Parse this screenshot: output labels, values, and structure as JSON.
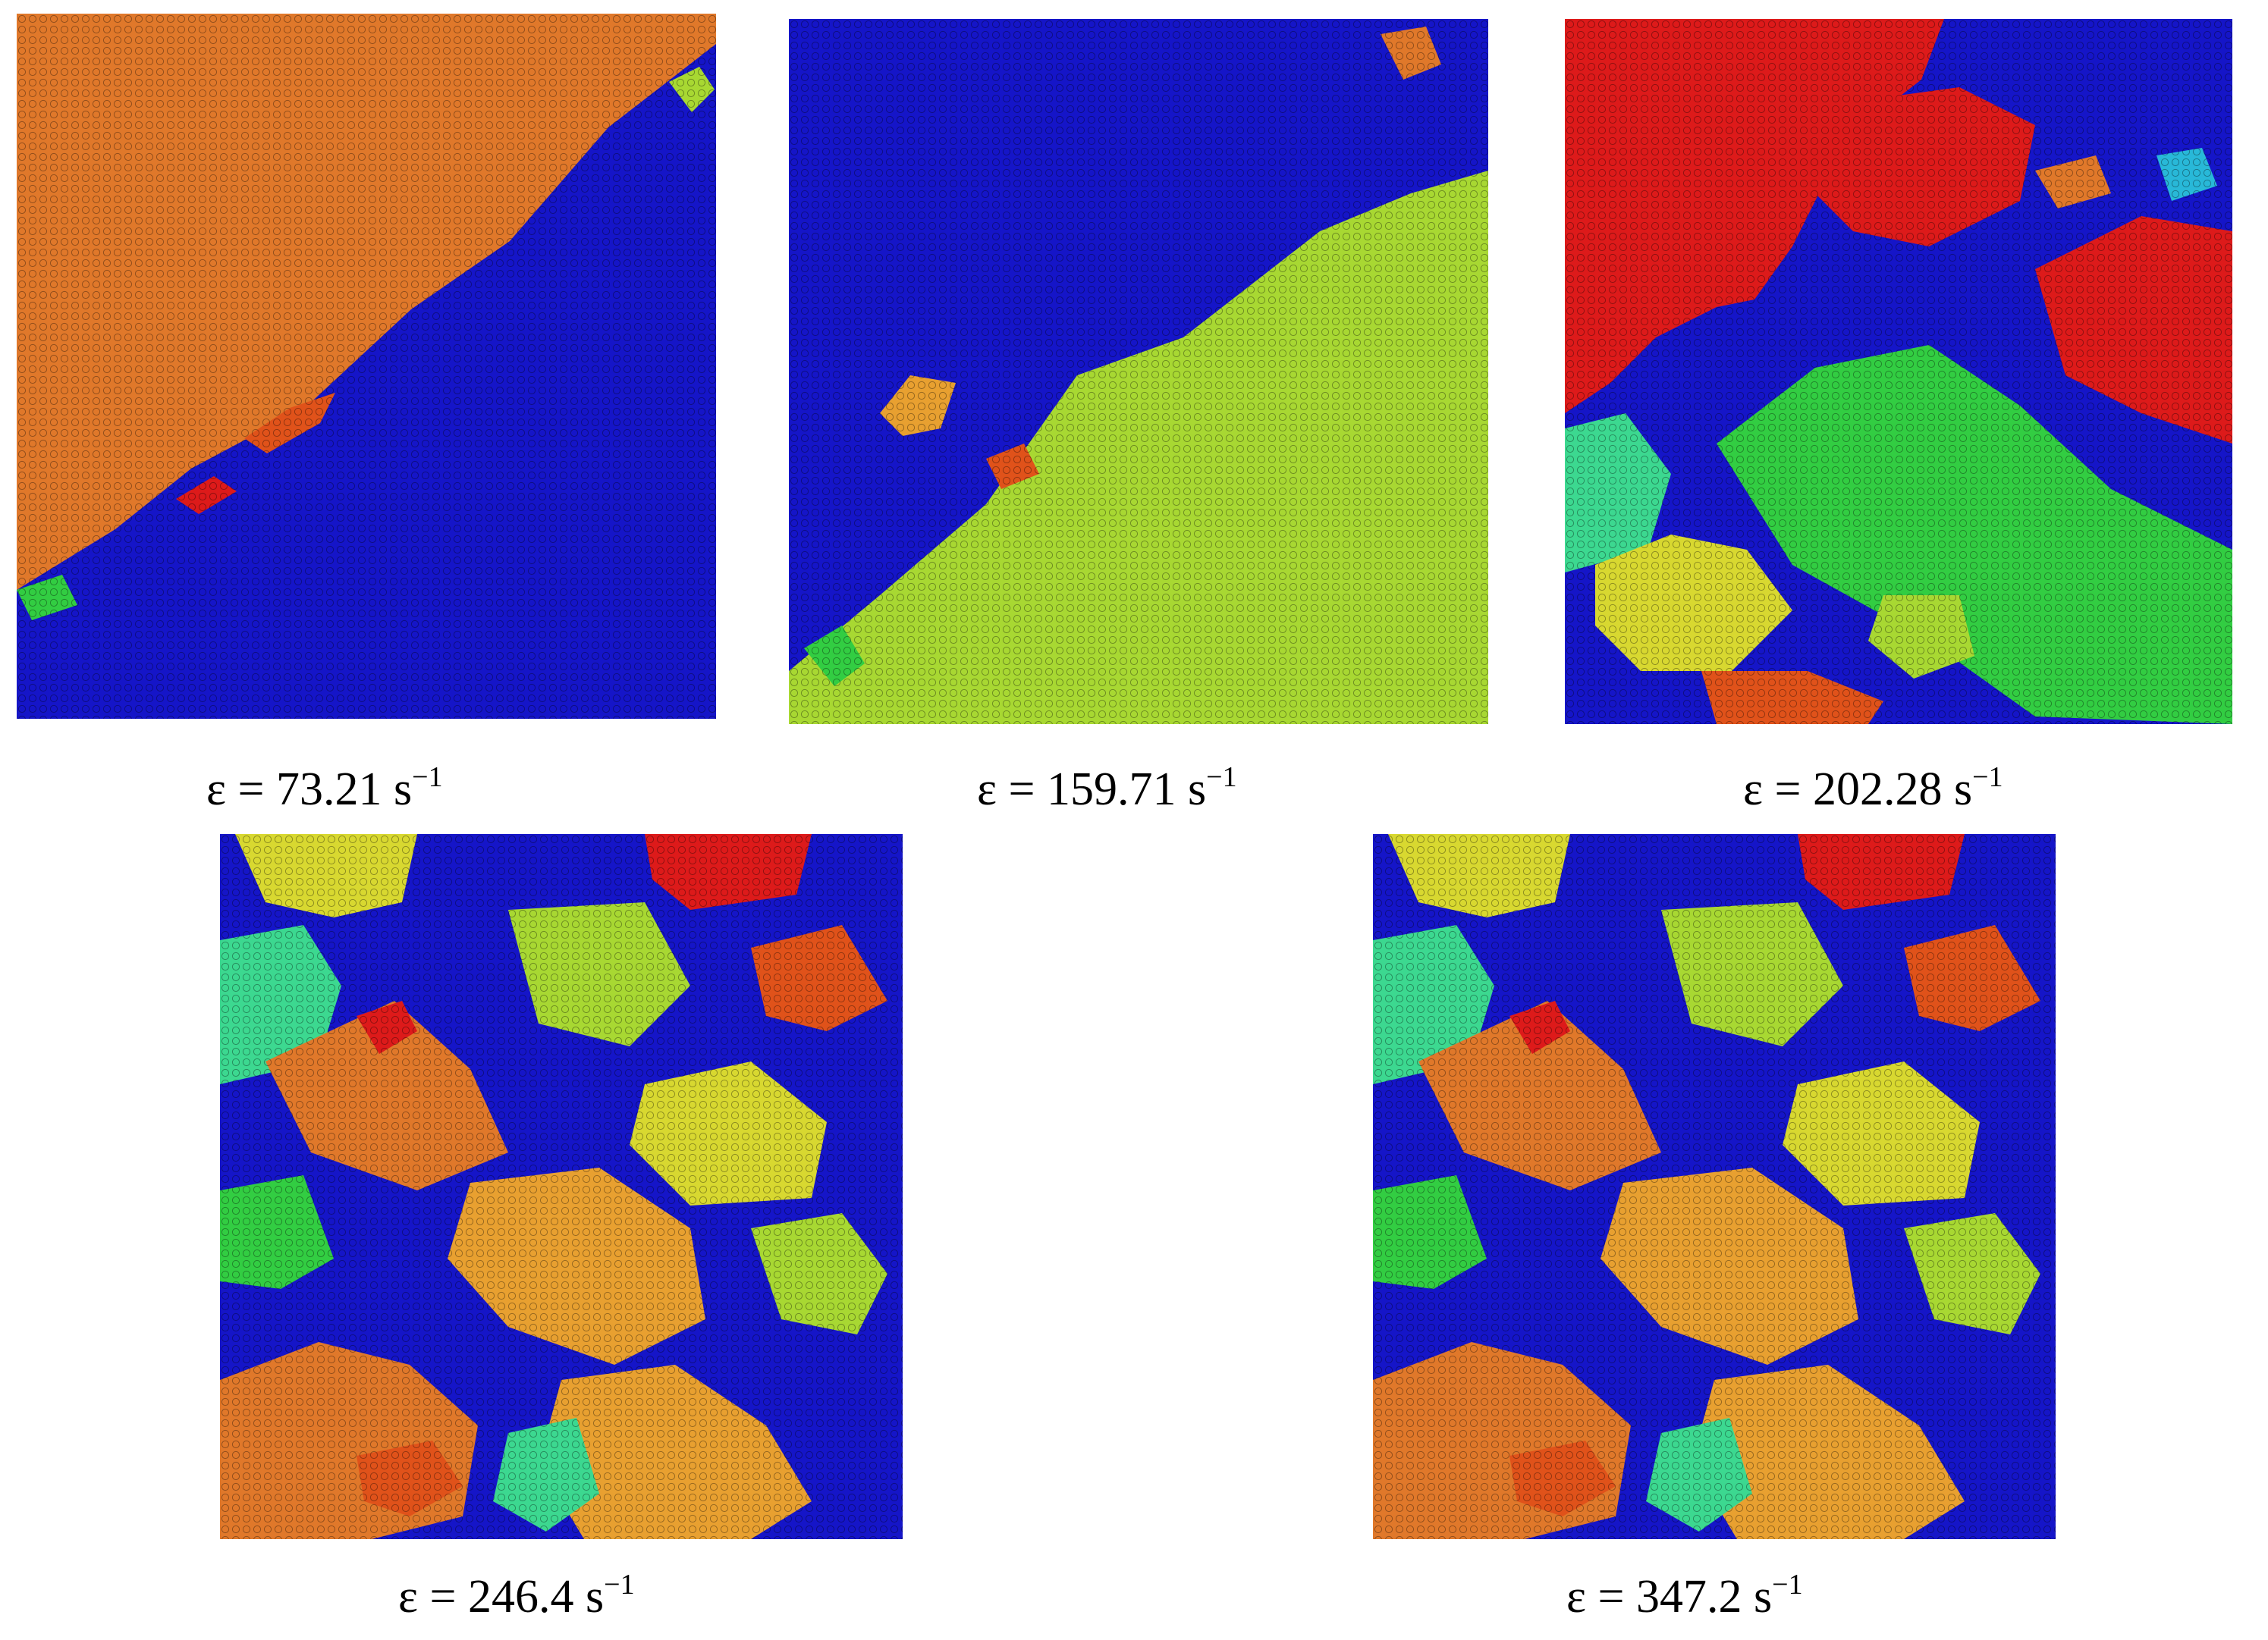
{
  "palette": {
    "background_blue": "#1515c8",
    "orange": "#e0782a",
    "light_orange": "#e8a030",
    "red": "#dd1a1a",
    "yellow_green": "#a8d832",
    "green": "#32cd42",
    "mint": "#3cd890",
    "yellow": "#d8d830",
    "cyan": "#28b8d8",
    "orange_red": "#e0521a"
  },
  "panels": [
    {
      "id": "p1",
      "caption_prefix": "ε = 73.21 s",
      "caption_sup": "−1"
    },
    {
      "id": "p2",
      "caption_prefix": "ε = 159.71 s",
      "caption_sup": "−1"
    },
    {
      "id": "p3",
      "caption_prefix": "ε = 202.28 s",
      "caption_sup": "−1"
    },
    {
      "id": "p4",
      "caption_prefix": "ε = 246.4 s",
      "caption_sup": "−1"
    },
    {
      "id": "p5",
      "caption_prefix": "ε = 347.2 s",
      "caption_sup": "−1"
    }
  ]
}
